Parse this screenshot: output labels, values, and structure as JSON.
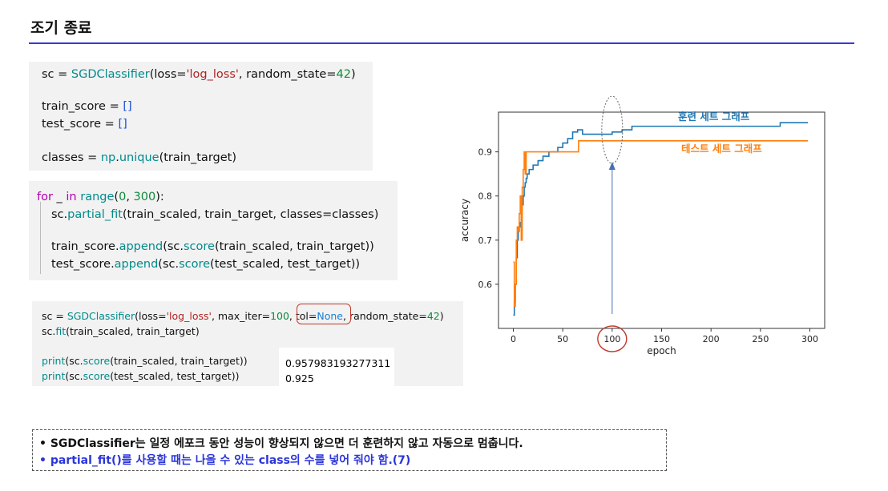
{
  "title": "조기 종료",
  "code_block_1": {
    "l1": {
      "a": "sc = ",
      "b": "SGDClassifier",
      "c": "(loss=",
      "d": "'log_loss'",
      "e": ", random_state=",
      "f": "42",
      "g": ")"
    },
    "l2": {
      "a": "train_score = ",
      "b": "[]"
    },
    "l3": {
      "a": "test_score = ",
      "b": "[]"
    },
    "l4": {
      "a": "classes = ",
      "b": "np",
      "c": ".",
      "d": "unique",
      "e": "(train_target)"
    }
  },
  "code_block_2": {
    "l1": {
      "a": "for",
      "b": " _ ",
      "c": "in",
      "d": " ",
      "e": "range",
      "f": "(",
      "g": "0",
      "h": ", ",
      "i": "300",
      "j": "):"
    },
    "l2": {
      "a": "sc",
      "b": ".",
      "c": "partial_fit",
      "d": "(train_scaled, train_target, classes=classes)"
    },
    "l3": {
      "a": "train_score",
      "b": ".",
      "c": "append",
      "d": "(sc",
      "e": ".",
      "f": "score",
      "g": "(train_scaled, train_target))"
    },
    "l4": {
      "a": "test_score",
      "b": ".",
      "c": "append",
      "d": "(sc",
      "e": ".",
      "f": "score",
      "g": "(test_scaled, test_target))"
    }
  },
  "code_block_3": {
    "l1": {
      "a": "sc = ",
      "b": "SGDClassifier",
      "c": "(loss=",
      "d": "'log_loss'",
      "e": ", max_iter=",
      "f": "100",
      "g": ", ",
      "h": "tol=",
      "i": "None",
      "j": ", random_state=",
      "k": "42",
      "l": ")"
    },
    "l2": {
      "a": "sc",
      "b": ".",
      "c": "fit",
      "d": "(train_scaled, train_target)"
    },
    "l3": {
      "a": "print",
      "b": "(sc",
      "c": ".",
      "d": "score",
      "e": "(train_scaled, train_target))"
    },
    "l4": {
      "a": "print",
      "b": "(sc",
      "c": ".",
      "d": "score",
      "e": "(test_scaled, test_target))"
    }
  },
  "output": {
    "train": "0.957983193277311",
    "test": "0.925"
  },
  "chart_data": {
    "type": "line",
    "xlabel": "epoch",
    "ylabel": "accuracy",
    "xlim": [
      -15,
      315
    ],
    "ylim": [
      0.5,
      0.99
    ],
    "xticks": [
      "0",
      "50",
      "100",
      "150",
      "200",
      "250",
      "300"
    ],
    "yticks": [
      "0.6",
      "0.7",
      "0.8",
      "0.9"
    ],
    "grid": false,
    "annotations": [
      "훈련 세트 그래프",
      "테스트 세트 그래프"
    ],
    "series": [
      {
        "name": "훈련 세트 그래프",
        "color": "#1f77b4",
        "x": [
          0,
          1,
          2,
          3,
          4,
          5,
          6,
          7,
          8,
          9,
          10,
          11,
          12,
          13,
          14,
          16,
          18,
          20,
          22,
          25,
          28,
          30,
          33,
          36,
          40,
          45,
          50,
          55,
          60,
          65,
          70,
          80,
          90,
          100,
          110,
          120,
          150,
          200,
          250,
          270,
          298
        ],
        "y": [
          0.53,
          0.56,
          0.6,
          0.66,
          0.7,
          0.72,
          0.73,
          0.74,
          0.76,
          0.78,
          0.8,
          0.82,
          0.83,
          0.84,
          0.85,
          0.86,
          0.86,
          0.87,
          0.87,
          0.88,
          0.88,
          0.89,
          0.89,
          0.9,
          0.9,
          0.91,
          0.92,
          0.93,
          0.945,
          0.95,
          0.94,
          0.94,
          0.94,
          0.945,
          0.95,
          0.958,
          0.958,
          0.958,
          0.958,
          0.966,
          0.966
        ]
      },
      {
        "name": "테스트 세트 그래프",
        "color": "#ff7f0e",
        "x": [
          0,
          1,
          2,
          3,
          4,
          5,
          6,
          7,
          8,
          9,
          10,
          11,
          12,
          13,
          15,
          20,
          30,
          40,
          50,
          60,
          65,
          66,
          100,
          150,
          200,
          250,
          298
        ],
        "y": [
          0.65,
          0.55,
          0.6,
          0.7,
          0.73,
          0.72,
          0.76,
          0.8,
          0.7,
          0.82,
          0.86,
          0.9,
          0.85,
          0.9,
          0.9,
          0.9,
          0.9,
          0.9,
          0.9,
          0.9,
          0.9,
          0.925,
          0.925,
          0.925,
          0.925,
          0.925,
          0.925
        ]
      }
    ]
  },
  "notes": {
    "n1": "• SGDClassifier는 일정 에포크 동안 성능이 향상되지 않으면 더 훈련하지 않고 자동으로 멈춥니다.",
    "n2": "• partial_fit()를 사용할 때는 나올 수 있는 class의 수를 넣어 줘야 함.(7)"
  }
}
